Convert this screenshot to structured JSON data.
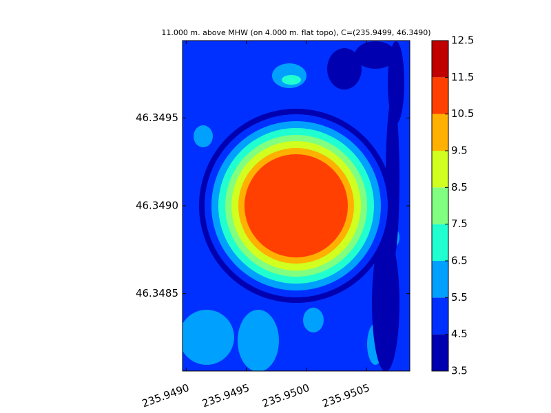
{
  "chart_data": {
    "type": "contourf",
    "title": "11.000 m. above MHW (on 4.000 m. flat topo), C=(235.9499, 46.3490)",
    "xlim": [
      235.94897,
      235.95086
    ],
    "ylim": [
      46.34806,
      46.34994
    ],
    "xticks": [
      {
        "value": 235.949,
        "label": "235.9490"
      },
      235.9495,
      {
        "value": 235.95,
        "label": "235.9500"
      },
      235.9505
    ],
    "yticks": [
      46.3495,
      {
        "value": 46.349,
        "label": "46.3490"
      },
      46.3485
    ],
    "levels": [
      3.5,
      4.5,
      5.5,
      6.5,
      7.5,
      8.5,
      9.5,
      10.5,
      11.5,
      12.5
    ],
    "colors": [
      "#0000b0",
      "#0030ff",
      "#00a0ff",
      "#20ffd0",
      "#80ff80",
      "#d0ff20",
      "#ffb000",
      "#ff4000",
      "#c00000"
    ]
  }
}
